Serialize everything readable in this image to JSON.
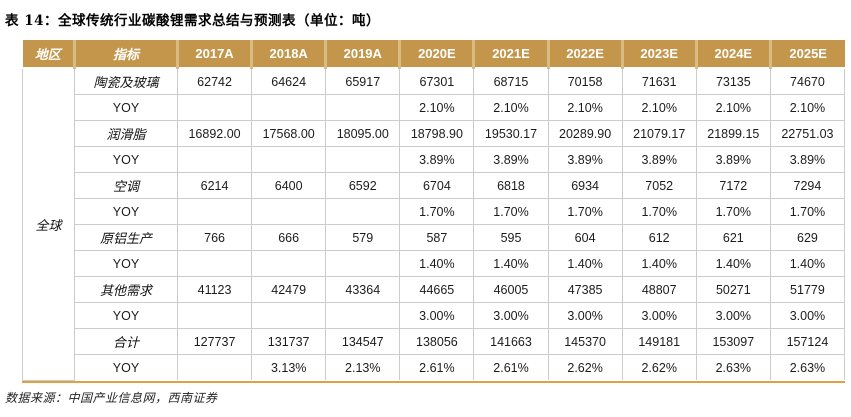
{
  "title": "表 14：全球传统行业碳酸锂需求总结与预测表（单位：吨）",
  "source_note": "数据来源：中国产业信息网，西南证券",
  "colors": {
    "header_bg": "#C3964B",
    "header_separator": "#D9BC82",
    "header_text": "#FFFFFF",
    "grid_line": "#CCCCCC",
    "bottom_rule": "#E0A145"
  },
  "table": {
    "header": [
      "地区",
      "指标",
      "2017A",
      "2018A",
      "2019A",
      "2020E",
      "2021E",
      "2022E",
      "2023E",
      "2024E",
      "2025E"
    ],
    "region": "全球",
    "rows": [
      {
        "indicator": "陶瓷及玻璃",
        "values": [
          "62742",
          "64624",
          "65917",
          "67301",
          "68715",
          "70158",
          "71631",
          "73135",
          "74670"
        ]
      },
      {
        "indicator": "YOY",
        "values": [
          "",
          "",
          "",
          "2.10%",
          "2.10%",
          "2.10%",
          "2.10%",
          "2.10%",
          "2.10%"
        ]
      },
      {
        "indicator": "润滑脂",
        "values": [
          "16892.00",
          "17568.00",
          "18095.00",
          "18798.90",
          "19530.17",
          "20289.90",
          "21079.17",
          "21899.15",
          "22751.03"
        ]
      },
      {
        "indicator": "YOY",
        "values": [
          "",
          "",
          "",
          "3.89%",
          "3.89%",
          "3.89%",
          "3.89%",
          "3.89%",
          "3.89%"
        ]
      },
      {
        "indicator": "空调",
        "values": [
          "6214",
          "6400",
          "6592",
          "6704",
          "6818",
          "6934",
          "7052",
          "7172",
          "7294"
        ]
      },
      {
        "indicator": "YOY",
        "values": [
          "",
          "",
          "",
          "1.70%",
          "1.70%",
          "1.70%",
          "1.70%",
          "1.70%",
          "1.70%"
        ]
      },
      {
        "indicator": "原铝生产",
        "values": [
          "766",
          "666",
          "579",
          "587",
          "595",
          "604",
          "612",
          "621",
          "629"
        ]
      },
      {
        "indicator": "YOY",
        "values": [
          "",
          "",
          "",
          "1.40%",
          "1.40%",
          "1.40%",
          "1.40%",
          "1.40%",
          "1.40%"
        ]
      },
      {
        "indicator": "其他需求",
        "values": [
          "41123",
          "42479",
          "43364",
          "44665",
          "46005",
          "47385",
          "48807",
          "50271",
          "51779"
        ]
      },
      {
        "indicator": "YOY",
        "values": [
          "",
          "",
          "",
          "3.00%",
          "3.00%",
          "3.00%",
          "3.00%",
          "3.00%",
          "3.00%"
        ]
      },
      {
        "indicator": "合计",
        "values": [
          "127737",
          "131737",
          "134547",
          "138056",
          "141663",
          "145370",
          "149181",
          "153097",
          "157124"
        ]
      },
      {
        "indicator": "YOY",
        "values": [
          "",
          "3.13%",
          "2.13%",
          "2.61%",
          "2.61%",
          "2.62%",
          "2.62%",
          "2.63%",
          "2.63%"
        ]
      }
    ]
  }
}
